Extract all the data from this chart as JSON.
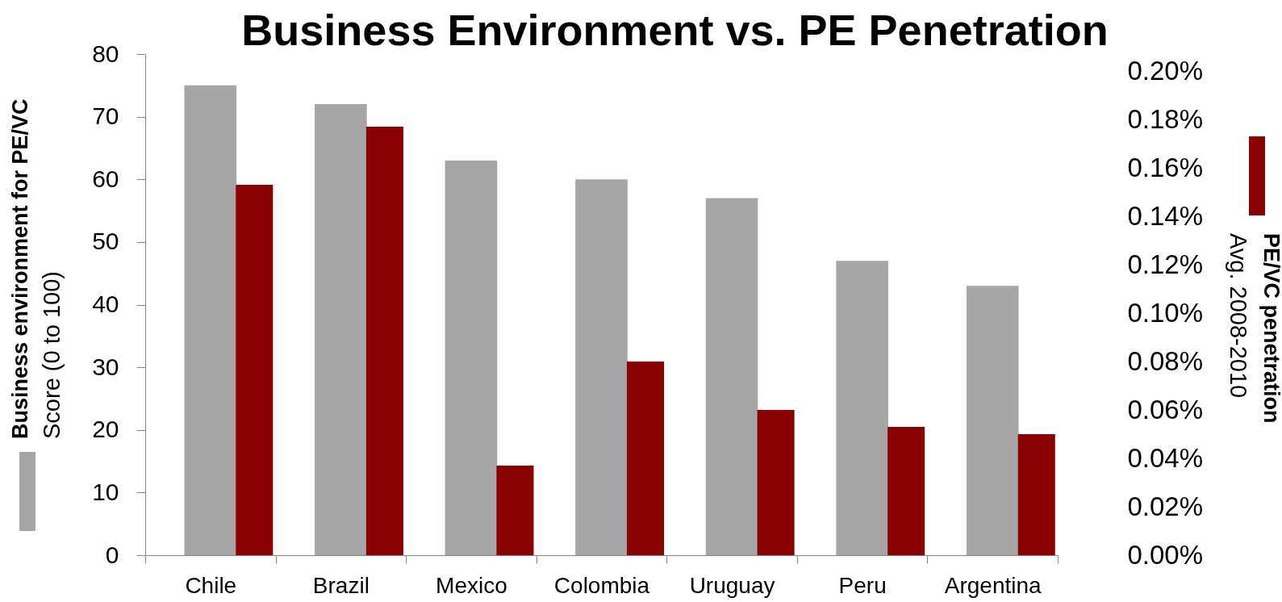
{
  "chart_data": {
    "type": "bar",
    "title": "Business Environment vs. PE Penetration",
    "ylabel": "Business environment for PE/VC\nScore (0 to 100)",
    "y2label": "PE/VC penetration\nAvg. 2008-2010",
    "categories": [
      "Chile",
      "Brazil",
      "Mexico",
      "Colombia",
      "Uruguay",
      "Peru",
      "Argentina"
    ],
    "series": [
      {
        "color": "#a6a6a6",
        "values": [
          75,
          72,
          63,
          60,
          57,
          47,
          43
        ]
      },
      {
        "color": "#8b0000",
        "axis": "y2",
        "values": [
          0.153,
          0.177,
          0.037,
          0.08,
          0.06,
          0.053,
          0.05
        ]
      }
    ],
    "ylim": [
      0,
      80
    ],
    "yticks": [
      0,
      10,
      20,
      30,
      40,
      50,
      60,
      70,
      80
    ],
    "y2lim": [
      0,
      0.207
    ],
    "y2ticks": [
      {
        "value": 0,
        "label": "0.00%"
      },
      {
        "value": 0.02,
        "label": "0.02%"
      },
      {
        "value": 0.04,
        "label": "0.04%"
      },
      {
        "value": 0.06,
        "label": "0.06%"
      },
      {
        "value": 0.08,
        "label": "0.08%"
      },
      {
        "value": 0.1,
        "label": "0.10%"
      },
      {
        "value": 0.12,
        "label": "0.12%"
      },
      {
        "value": 0.14,
        "label": "0.14%"
      },
      {
        "value": 0.16,
        "label": "0.16%"
      },
      {
        "value": 0.18,
        "label": "0.18%"
      },
      {
        "value": 0.2,
        "label": "0.20%"
      }
    ]
  }
}
